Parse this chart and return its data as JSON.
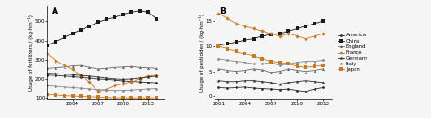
{
  "years_A": [
    2001,
    2002,
    2003,
    2004,
    2005,
    2006,
    2007,
    2008,
    2009,
    2010,
    2011,
    2012,
    2013,
    2014
  ],
  "years_B": [
    2001,
    2002,
    2003,
    2004,
    2005,
    2006,
    2007,
    2008,
    2009,
    2010,
    2011,
    2012,
    2013
  ],
  "fertilizer": {
    "America": [
      220,
      218,
      215,
      212,
      208,
      205,
      200,
      198,
      195,
      190,
      188,
      185,
      183,
      180
    ],
    "China": [
      375,
      395,
      415,
      435,
      455,
      475,
      495,
      510,
      520,
      535,
      548,
      555,
      548,
      512
    ],
    "England": [
      255,
      258,
      262,
      268,
      270,
      260,
      252,
      255,
      260,
      262,
      265,
      260,
      258,
      255
    ],
    "France": [
      330,
      295,
      270,
      250,
      220,
      185,
      135,
      145,
      165,
      175,
      185,
      200,
      215,
      220
    ],
    "Germany": [
      230,
      228,
      225,
      222,
      218,
      215,
      210,
      205,
      200,
      198,
      200,
      205,
      210,
      215
    ],
    "Italy": [
      165,
      162,
      158,
      155,
      152,
      148,
      145,
      142,
      140,
      140,
      142,
      145,
      148,
      150
    ],
    "Japan": [
      118,
      115,
      112,
      110,
      108,
      106,
      104,
      102,
      100,
      100,
      100,
      100,
      100,
      100
    ]
  },
  "pesticide": {
    "America": [
      1.8,
      1.7,
      1.8,
      1.9,
      1.7,
      1.6,
      1.5,
      1.4,
      1.5,
      1.2,
      1.0,
      1.5,
      1.8
    ],
    "China": [
      10.2,
      10.5,
      10.8,
      11.2,
      11.5,
      12.0,
      12.3,
      12.5,
      13.0,
      13.5,
      14.0,
      14.5,
      15.0
    ],
    "England": [
      5.5,
      5.2,
      5.0,
      5.2,
      5.5,
      5.3,
      4.8,
      5.0,
      5.5,
      5.2,
      5.0,
      5.2,
      5.5
    ],
    "France": [
      16.5,
      15.5,
      14.5,
      14.0,
      13.5,
      13.0,
      12.5,
      12.0,
      12.5,
      12.0,
      11.5,
      12.0,
      12.5
    ],
    "Germany": [
      3.2,
      3.0,
      3.0,
      3.2,
      3.2,
      3.0,
      2.8,
      2.5,
      2.8,
      3.0,
      3.2,
      3.0,
      2.8
    ],
    "Italy": [
      7.5,
      7.2,
      7.0,
      6.8,
      6.5,
      6.5,
      6.8,
      6.2,
      6.5,
      6.8,
      7.0,
      7.0,
      7.2
    ],
    "Japan": [
      10.0,
      9.5,
      9.0,
      8.5,
      8.0,
      7.5,
      7.0,
      6.8,
      6.5,
      6.0,
      5.8,
      6.0,
      6.2
    ]
  },
  "colors": {
    "America": "#2a2a2a",
    "China": "#1a1a1a",
    "England": "#666666",
    "France": "#c87820",
    "Germany": "#2a2a2a",
    "Italy": "#888888",
    "Japan": "#c87820"
  },
  "markers": {
    "America": "o",
    "China": "s",
    "England": "^",
    "France": "D",
    "Germany": "*",
    "Italy": "o",
    "Japan": "s"
  },
  "markersizes": {
    "America": 2.0,
    "China": 2.2,
    "England": 2.2,
    "France": 2.2,
    "Germany": 3.0,
    "Italy": 2.0,
    "Japan": 2.2
  },
  "legend_labels": [
    "America",
    "China",
    "England",
    "France",
    "Germany",
    "Italy",
    "Japan"
  ],
  "ylabel_A": "Usage of fertilizers / (kg·hm⁻¹)",
  "ylabel_B": "Usage of pesticides / (kg·hm⁻¹)",
  "ylim_A": [
    95,
    580
  ],
  "ylim_B": [
    -0.5,
    18
  ],
  "yticks_A": [
    100,
    200,
    300,
    400,
    500
  ],
  "yticks_B": [
    0,
    5,
    10,
    15
  ],
  "xticks_A": [
    2004,
    2007,
    2010,
    2013
  ],
  "xticks_B": [
    2001,
    2004,
    2007,
    2010,
    2013
  ],
  "panel_A": "A",
  "panel_B": "B",
  "bg_color": "#f5f5f5",
  "linewidth": 0.6
}
